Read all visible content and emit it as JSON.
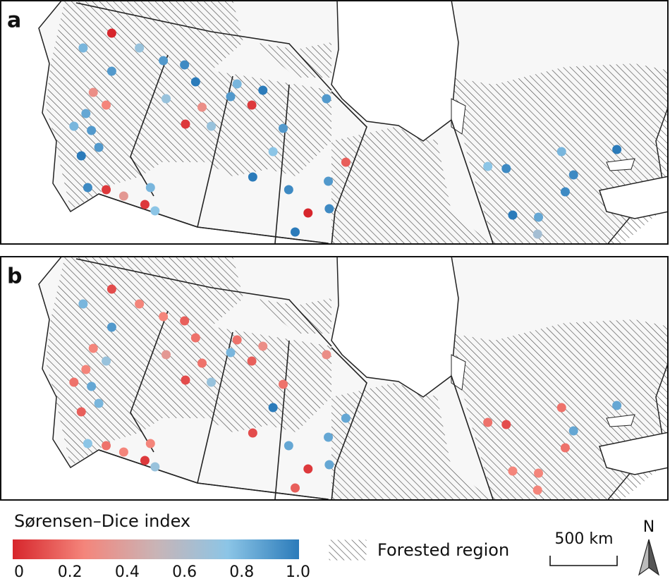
{
  "sites": [
    {
      "lon": -125.8,
      "lat": 57.1
    },
    {
      "lon": -128.9,
      "lat": 56.4
    },
    {
      "lon": -122.8,
      "lat": 56.4
    },
    {
      "lon": -125.8,
      "lat": 55.3
    },
    {
      "lon": -127.8,
      "lat": 54.3
    },
    {
      "lon": -126.4,
      "lat": 53.7
    },
    {
      "lon": -128.6,
      "lat": 53.3
    },
    {
      "lon": -128.0,
      "lat": 52.5
    },
    {
      "lon": -129.9,
      "lat": 52.7
    },
    {
      "lon": -127.2,
      "lat": 51.7
    },
    {
      "lon": -129.1,
      "lat": 51.3
    },
    {
      "lon": -126.4,
      "lat": 49.7
    },
    {
      "lon": -124.5,
      "lat": 49.4
    },
    {
      "lon": -121.6,
      "lat": 49.8
    },
    {
      "lon": -121.1,
      "lat": 48.7
    },
    {
      "lon": -122.2,
      "lat": 49.0
    },
    {
      "lon": -120.2,
      "lat": 55.8
    },
    {
      "lon": -117.9,
      "lat": 55.6
    },
    {
      "lon": -116.7,
      "lat": 54.8
    },
    {
      "lon": -119.9,
      "lat": 54.0
    },
    {
      "lon": -116.0,
      "lat": 53.6
    },
    {
      "lon": -117.8,
      "lat": 52.8
    },
    {
      "lon": -115.0,
      "lat": 52.7
    },
    {
      "lon": -112.2,
      "lat": 54.7
    },
    {
      "lon": -112.9,
      "lat": 54.1
    },
    {
      "lon": -110.6,
      "lat": 53.7
    },
    {
      "lon": -109.4,
      "lat": 54.4
    },
    {
      "lon": -102.5,
      "lat": 54.0
    },
    {
      "lon": -107.2,
      "lat": 52.6
    },
    {
      "lon": -108.3,
      "lat": 51.5
    },
    {
      "lon": -110.5,
      "lat": 50.3
    },
    {
      "lon": -106.6,
      "lat": 49.7
    },
    {
      "lon": -104.5,
      "lat": 48.6
    },
    {
      "lon": -105.9,
      "lat": 47.7
    },
    {
      "lon": -100.4,
      "lat": 51.0
    },
    {
      "lon": -102.3,
      "lat": 50.1
    },
    {
      "lon": -102.2,
      "lat": 48.8
    },
    {
      "lon": -85.0,
      "lat": 50.8
    },
    {
      "lon": -83.0,
      "lat": 50.7
    },
    {
      "lon": -77.0,
      "lat": 51.5
    },
    {
      "lon": -75.7,
      "lat": 50.4
    },
    {
      "lon": -71.0,
      "lat": 51.6
    },
    {
      "lon": -82.3,
      "lat": 48.5
    },
    {
      "lon": -79.5,
      "lat": 48.4
    },
    {
      "lon": -79.6,
      "lat": 47.6
    },
    {
      "lon": -76.6,
      "lat": 49.6
    },
    {
      "lon": -128.4,
      "lat": 49.8
    }
  ],
  "panels": [
    {
      "label": "a",
      "values": [
        0.0,
        0.8,
        0.7,
        0.9,
        0.3,
        0.25,
        0.85,
        0.9,
        0.8,
        0.9,
        1.0,
        0.05,
        0.35,
        0.8,
        0.75,
        0.05,
        0.9,
        0.95,
        1.0,
        0.7,
        0.3,
        0.05,
        0.7,
        0.8,
        0.9,
        0.05,
        1.0,
        0.9,
        0.9,
        0.75,
        1.0,
        0.95,
        0.0,
        1.0,
        0.15,
        0.9,
        0.95,
        0.75,
        0.95,
        0.8,
        0.95,
        1.0,
        1.0,
        0.85,
        0.65,
        0.95,
        0.95
      ]
    },
    {
      "label": "b",
      "values": [
        0.1,
        0.8,
        0.25,
        0.9,
        0.25,
        0.7,
        0.25,
        0.85,
        0.2,
        0.8,
        0.15,
        0.2,
        0.25,
        0.25,
        0.7,
        0.05,
        0.25,
        0.15,
        0.2,
        0.35,
        0.2,
        0.1,
        0.7,
        0.2,
        0.8,
        0.15,
        0.3,
        0.3,
        0.2,
        1.0,
        0.1,
        0.85,
        0.05,
        0.15,
        0.85,
        0.85,
        0.85,
        0.2,
        0.1,
        0.2,
        0.85,
        0.85,
        0.25,
        0.25,
        0.25,
        0.2,
        0.75
      ]
    }
  ],
  "legend": {
    "title": "Sørensen–Dice index",
    "range": [
      0,
      1
    ],
    "ticks": [
      0,
      0.2,
      0.4,
      0.6,
      0.8,
      {
        "value": 1,
        "label": "1.0"
      }
    ],
    "colors": [
      "#d7262c",
      "#f4857b",
      "#c9b4b6",
      "#8cc5e6",
      "#2b7bba"
    ]
  },
  "forest_label": "Forested region",
  "scale_label": "500 km",
  "north_label": "N"
}
